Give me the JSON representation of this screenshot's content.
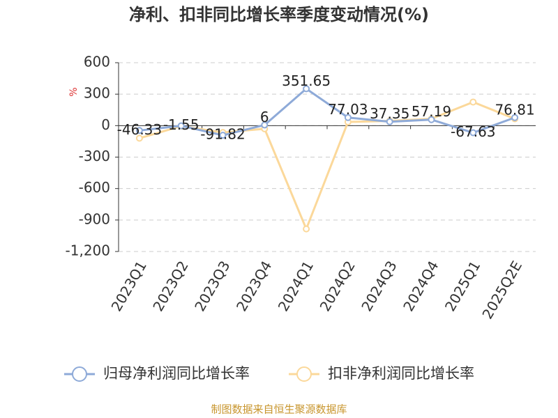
{
  "chart_data": {
    "type": "line",
    "title": "净利、扣非同比增长率季度变动情况(%)",
    "y_label": "%",
    "categories": [
      "2023Q1",
      "2023Q2",
      "2023Q3",
      "2023Q4",
      "2024Q1",
      "2024Q2",
      "2024Q3",
      "2024Q4",
      "2025Q1",
      "2025Q2E"
    ],
    "series": [
      {
        "name": "归母净利润同比增长率",
        "color": "#8eaad8",
        "values": [
          -46.33,
          -1.55,
          -91.82,
          6,
          351.65,
          77.03,
          37.35,
          57.19,
          -67.63,
          76.81
        ]
      },
      {
        "name": "扣非净利润同比增长率",
        "color": "#fbd89a",
        "values": [
          -120,
          -5,
          -65,
          -30,
          -985,
          35,
          45,
          65,
          225,
          65
        ]
      }
    ],
    "ylim": [
      -1200,
      600
    ],
    "yticks": [
      {
        "value": -1200,
        "label": "-1,200"
      },
      -900,
      -600,
      -300,
      0,
      300,
      600
    ],
    "grid": true,
    "legend": "bottom",
    "source": "制图数据来自恒生聚源数据库"
  }
}
